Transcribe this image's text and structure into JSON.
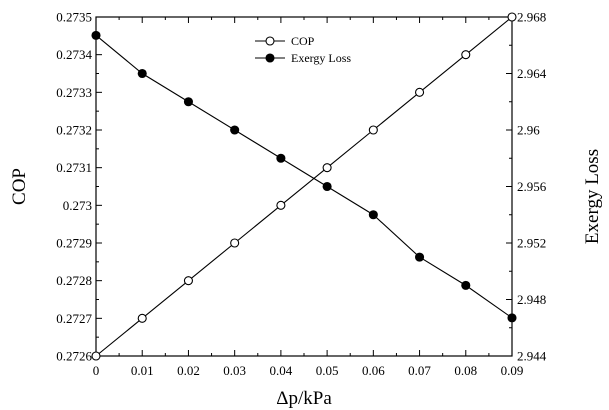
{
  "chart_data": {
    "type": "line",
    "xlabel": "Δp/kPa",
    "ylabel_left": "COP",
    "ylabel_right": "Exergy Loss",
    "xlim": [
      0,
      0.09
    ],
    "ylim_left": [
      0.2726,
      0.2735
    ],
    "ylim_right": [
      2.944,
      2.968
    ],
    "x_ticks": [
      "0",
      "0.01",
      "0.02",
      "0.03",
      "0.04",
      "0.05",
      "0.06",
      "0.07",
      "0.08",
      "0.09"
    ],
    "y_left_ticks": [
      "0.2726",
      "0.2727",
      "0.2728",
      "0.2729",
      "0.273",
      "0.2731",
      "0.2732",
      "0.2733",
      "0.2734",
      "0.2735"
    ],
    "y_right_ticks": [
      "2.944",
      "2.948",
      "2.952",
      "2.956",
      "2.96",
      "2.964",
      "2.968"
    ],
    "legend_position": "top-center",
    "grid": false,
    "x": [
      0,
      0.01,
      0.02,
      0.03,
      0.04,
      0.05,
      0.06,
      0.07,
      0.08,
      0.09
    ],
    "series": [
      {
        "name": "COP",
        "axis": "left",
        "marker": "open-circle",
        "values": [
          0.2726,
          0.2727,
          0.2728,
          0.2729,
          0.273,
          0.2731,
          0.2732,
          0.2733,
          0.2734,
          0.2735
        ]
      },
      {
        "name": "Exergy Loss",
        "axis": "right",
        "marker": "filled-circle",
        "values": [
          2.9667,
          2.964,
          2.962,
          2.96,
          2.958,
          2.956,
          2.954,
          2.951,
          2.949,
          2.9467
        ]
      }
    ]
  }
}
